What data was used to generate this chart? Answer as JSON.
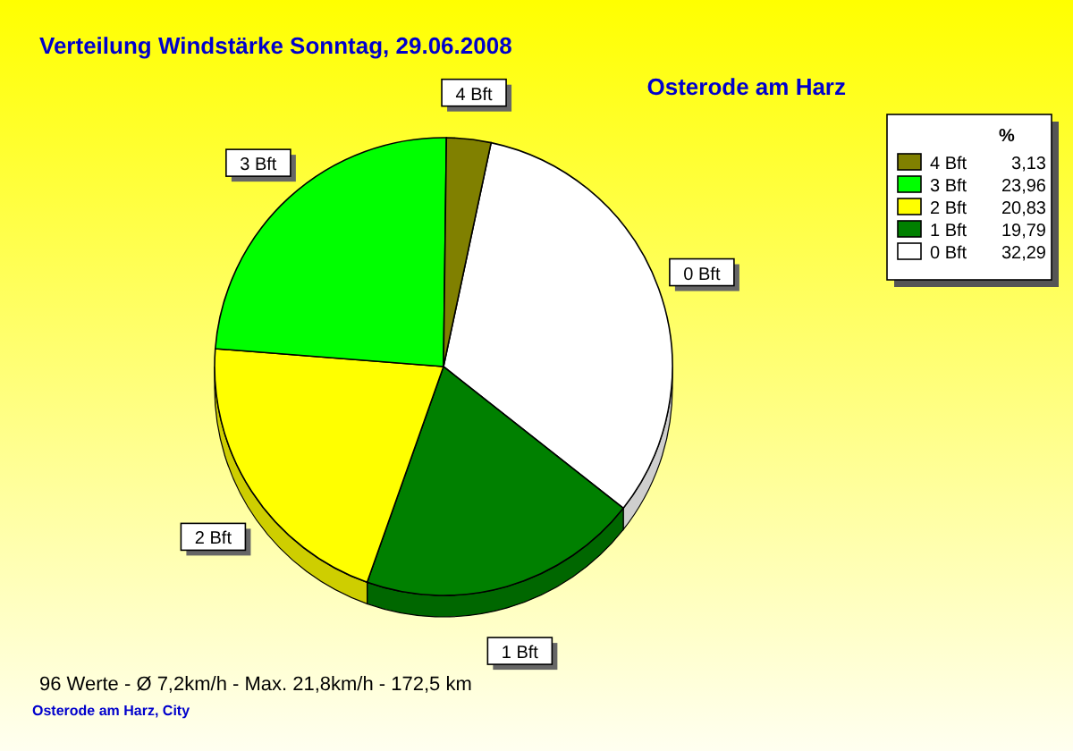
{
  "chart_data": {
    "type": "pie",
    "title": "Verteilung Windstärke  Sonntag, 29.06.2008",
    "subtitle": "Osterode am Harz",
    "legend_title": "%",
    "categories": [
      "0 Bft",
      "1 Bft",
      "2 Bft",
      "3 Bft",
      "4 Bft"
    ],
    "values": [
      32.29,
      19.79,
      20.83,
      23.96,
      3.13
    ],
    "value_labels": [
      "32,29",
      "19,79",
      "20,83",
      "23,96",
      "3,13"
    ],
    "colors": [
      "#ffffff",
      "#008000",
      "#ffff00",
      "#00ff00",
      "#808000"
    ],
    "legend": "top right",
    "annotations": [
      "96 Werte   -   Ø 7,2km/h  -  Max. 21,8km/h   -   172,5 km",
      "Osterode am Harz, City"
    ]
  }
}
